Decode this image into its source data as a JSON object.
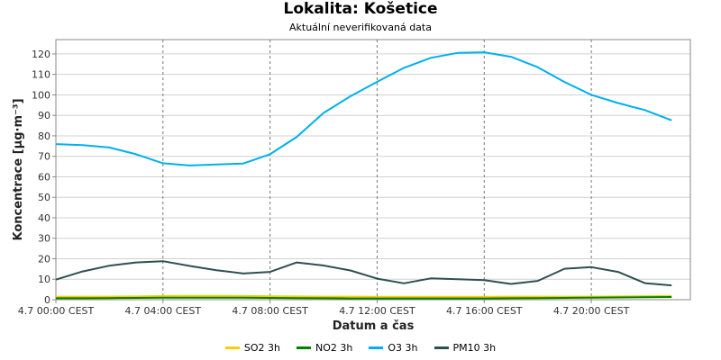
{
  "chart_data": {
    "type": "line",
    "title": "Lokalita: Košetice",
    "subtitle": "Aktuální neverifikovaná data",
    "xlabel": "Datum a čas",
    "ylabel": "Koncentrace [µg·m⁻³]",
    "ylim": [
      0,
      127
    ],
    "yticks": [
      0,
      10,
      20,
      30,
      40,
      50,
      60,
      70,
      80,
      90,
      100,
      110,
      120
    ],
    "xlim": [
      0,
      23.7
    ],
    "xticks": [
      {
        "hour": 0,
        "label": "4.7 00:00 CEST"
      },
      {
        "hour": 4,
        "label": "4.7 04:00 CEST"
      },
      {
        "hour": 8,
        "label": "4.7 08:00 CEST"
      },
      {
        "hour": 12,
        "label": "4.7 12:00 CEST"
      },
      {
        "hour": 16,
        "label": "4.7 16:00 CEST"
      },
      {
        "hour": 20,
        "label": "4.7 20:00 CEST"
      }
    ],
    "grid": true,
    "legend_position": "bottom",
    "x": [
      0,
      1,
      2,
      3,
      4,
      5,
      6,
      7,
      8,
      9,
      10,
      11,
      12,
      13,
      14,
      15,
      16,
      17,
      18,
      19,
      20,
      21,
      22,
      23
    ],
    "series": [
      {
        "name": "SO2 3h",
        "color": "#ffcc00",
        "values": [
          1.5,
          1.5,
          1.5,
          1.6,
          1.8,
          1.9,
          1.9,
          1.8,
          1.7,
          1.6,
          1.5,
          1.5,
          1.4,
          1.4,
          1.4,
          1.4,
          1.4,
          1.5,
          1.5,
          1.5,
          1.5,
          1.6,
          1.7,
          1.8
        ]
      },
      {
        "name": "NO2 3h",
        "color": "#008000",
        "values": [
          0.7,
          0.7,
          0.8,
          0.9,
          1.0,
          1.0,
          1.0,
          1.0,
          0.9,
          0.8,
          0.7,
          0.6,
          0.6,
          0.6,
          0.6,
          0.6,
          0.6,
          0.7,
          0.8,
          0.9,
          1.0,
          1.1,
          1.2,
          1.3
        ]
      },
      {
        "name": "O3 3h",
        "color": "#00b0ee",
        "values": [
          76,
          75.5,
          74.3,
          71,
          66.6,
          65.5,
          66,
          66.5,
          71,
          79.5,
          91.2,
          99.3,
          106.4,
          113.2,
          118.1,
          120.5,
          120.8,
          118.6,
          113.5,
          106.3,
          100.0,
          96.0,
          92.6,
          87.6
        ]
      },
      {
        "name": "PM10 3h",
        "color": "#2f4f4f",
        "values": [
          9.8,
          13.8,
          16.6,
          18.2,
          18.8,
          16.5,
          14.4,
          12.8,
          13.6,
          18.2,
          16.7,
          14.3,
          10.3,
          8.0,
          10.4,
          10.0,
          9.6,
          7.7,
          9.2,
          15.1,
          15.9,
          13.6,
          8.1,
          7.0
        ]
      }
    ]
  }
}
